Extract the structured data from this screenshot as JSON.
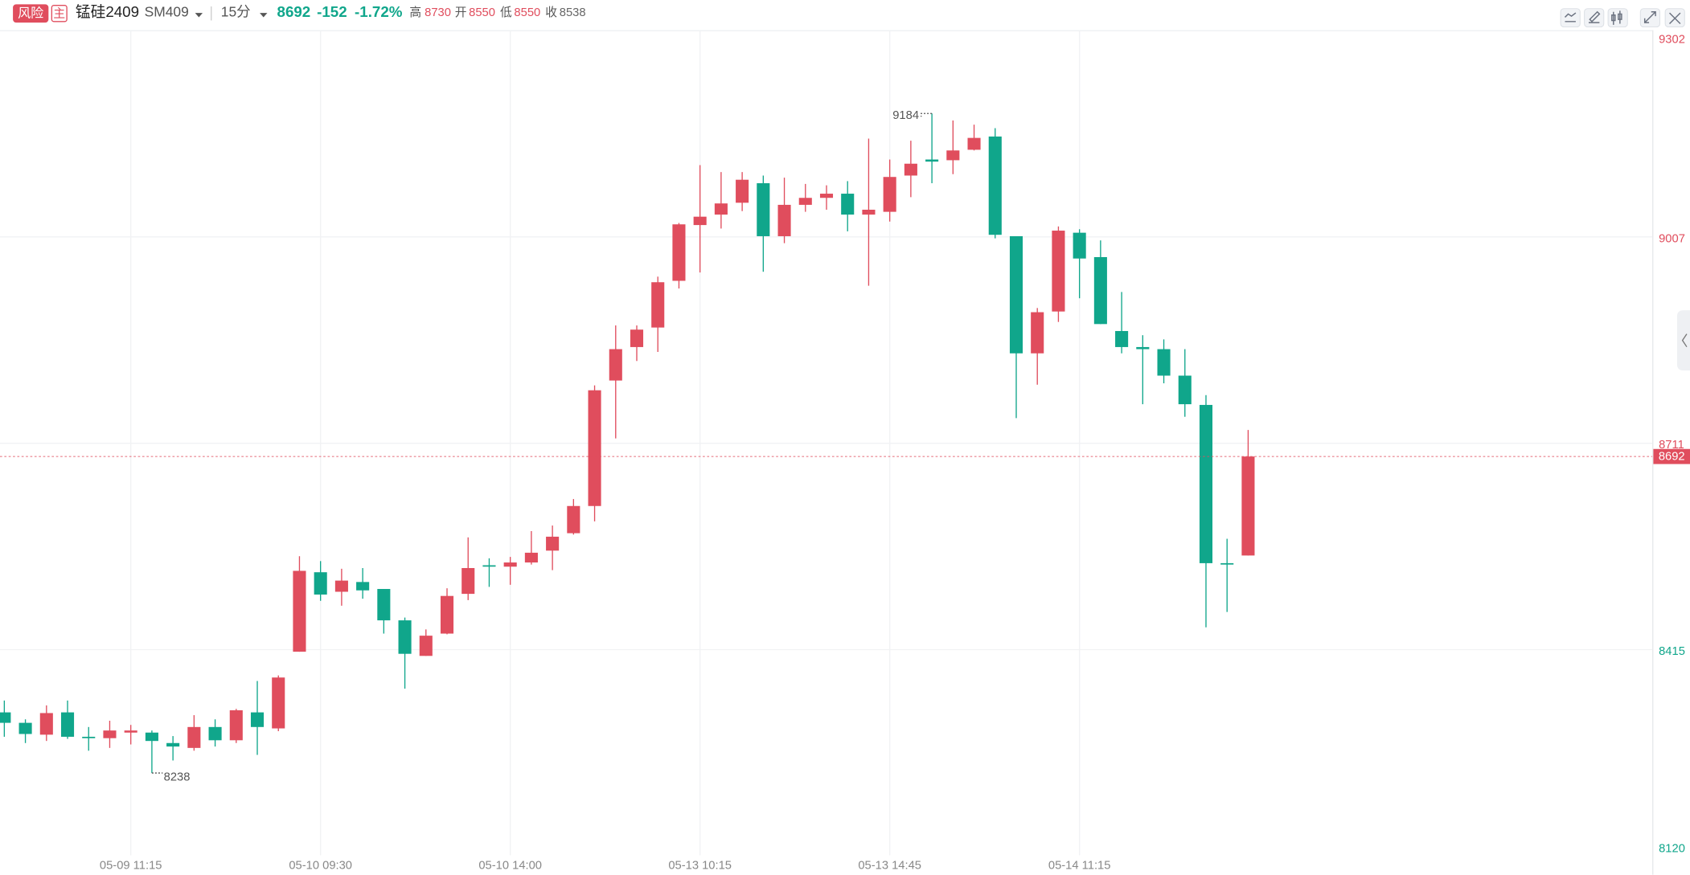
{
  "header": {
    "risk": "风险",
    "main": "主",
    "symbol": "锰硅2409",
    "code": "SM409",
    "period": "15分",
    "price": 8692,
    "change": -152,
    "change_pct": "-1.72%",
    "high_label": "高",
    "high": 8730,
    "open_label": "开",
    "open": 8550,
    "low_label": "低",
    "low": 8550,
    "prev_close_label": "收",
    "prev_close": 8538
  },
  "chart_data": {
    "type": "candlestick",
    "categories": [
      null,
      null,
      null,
      null,
      null,
      null,
      "05-09 11:15",
      null,
      null,
      null,
      null,
      null,
      null,
      null,
      null,
      "05-10 09:30",
      null,
      null,
      null,
      null,
      null,
      null,
      null,
      null,
      "05-10 14:00",
      null,
      null,
      null,
      null,
      null,
      null,
      null,
      null,
      "05-13 10:15",
      null,
      null,
      null,
      null,
      null,
      null,
      null,
      null,
      "05-13 14:45",
      null,
      null,
      null,
      null,
      null,
      null,
      null,
      null,
      "05-14 11:15",
      null,
      null,
      null,
      null,
      null,
      null,
      null,
      null
    ],
    "open": [
      8325,
      8310,
      8293,
      8325,
      8290,
      8288,
      8296,
      8296,
      8281,
      8274,
      8304,
      8285,
      8325,
      8302,
      8412,
      8526,
      8498,
      8512,
      8502,
      8457,
      8406,
      8438,
      8495,
      8536,
      8534,
      8540,
      8557,
      8582,
      8621,
      8801,
      8849,
      8877,
      8944,
      9024,
      9039,
      9056,
      9084,
      9008,
      9053,
      9063,
      9069,
      9039,
      9043,
      9095,
      9118,
      9117,
      9132,
      9151,
      9008,
      8840,
      8900,
      9013,
      8978,
      8872,
      8849,
      8846,
      8808,
      8766,
      8539,
      8550
    ],
    "high": [
      8342,
      8315,
      8335,
      8342,
      8304,
      8313,
      8307,
      8299,
      8291,
      8321,
      8315,
      8330,
      8370,
      8378,
      8549,
      8542,
      8531,
      8532,
      8502,
      8461,
      8444,
      8503,
      8576,
      8546,
      8548,
      8585,
      8593,
      8631,
      8794,
      8880,
      8880,
      8950,
      9027,
      9110,
      9100,
      9100,
      9095,
      9092,
      9083,
      9081,
      9087,
      9148,
      9118,
      9145,
      9184,
      9174,
      9168,
      9163,
      9008,
      8905,
      9022,
      9018,
      9002,
      8928,
      8866,
      8860,
      8846,
      8780,
      8574,
      8730
    ],
    "low": [
      8290,
      8281,
      8284,
      8287,
      8270,
      8274,
      8279,
      8238,
      8256,
      8270,
      8276,
      8281,
      8264,
      8298,
      8412,
      8485,
      8478,
      8488,
      8438,
      8359,
      8406,
      8437,
      8486,
      8505,
      8508,
      8537,
      8529,
      8580,
      8599,
      8718,
      8829,
      8842,
      8933,
      8956,
      9019,
      9044,
      8957,
      8998,
      9043,
      9046,
      9015,
      8937,
      9029,
      9064,
      9084,
      9097,
      9131,
      9005,
      8747,
      8795,
      8885,
      8919,
      8882,
      8840,
      8767,
      8797,
      8749,
      8447,
      8469,
      8550
    ],
    "close": [
      8310,
      8294,
      8324,
      8290,
      8288,
      8299,
      8299,
      8284,
      8276,
      8304,
      8285,
      8328,
      8304,
      8375,
      8528,
      8494,
      8514,
      8500,
      8457,
      8409,
      8435,
      8492,
      8532,
      8534,
      8540,
      8554,
      8577,
      8621,
      8787,
      8846,
      8874,
      8942,
      9025,
      9036,
      9055,
      9089,
      9008,
      9053,
      9063,
      9069,
      9039,
      9046,
      9093,
      9112,
      9115,
      9131,
      9149,
      9010,
      8840,
      8899,
      9016,
      8976,
      8882,
      8849,
      8846,
      8808,
      8767,
      8539,
      8537,
      8692
    ],
    "up_color": "#e04d5d",
    "down_color": "#10a68b",
    "ylim": [
      8120,
      9302
    ],
    "yticks": [
      8120,
      8415,
      8711,
      9007,
      9302
    ],
    "grid": true
  }
}
